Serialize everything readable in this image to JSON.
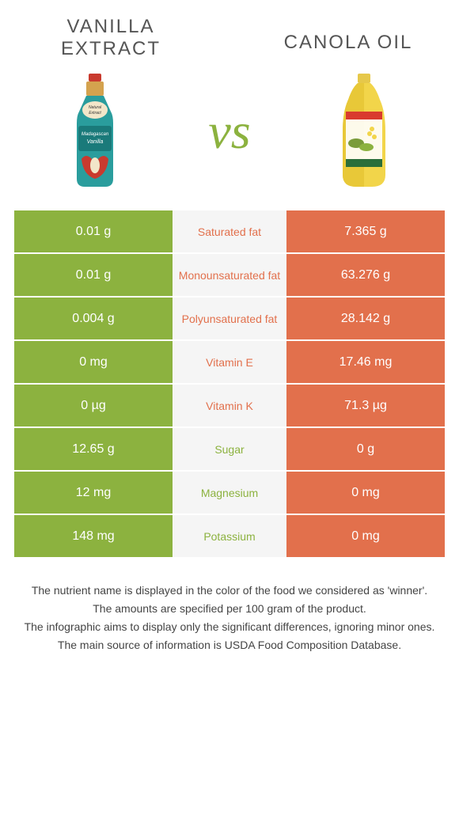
{
  "colors": {
    "green": "#8cb23f",
    "orange": "#e2704c",
    "mid_bg": "#f5f5f5",
    "text_dark": "#555555"
  },
  "header": {
    "left_title": "Vanilla Extract",
    "right_title": "Canola Oil",
    "vs": "vs"
  },
  "vs_color": "#8cb23f",
  "rows": [
    {
      "left": "0.01 g",
      "label": "Saturated fat",
      "right": "7.365 g",
      "winner": "right"
    },
    {
      "left": "0.01 g",
      "label": "Monounsaturated fat",
      "right": "63.276 g",
      "winner": "right"
    },
    {
      "left": "0.004 g",
      "label": "Polyunsaturated fat",
      "right": "28.142 g",
      "winner": "right"
    },
    {
      "left": "0 mg",
      "label": "Vitamin E",
      "right": "17.46 mg",
      "winner": "right"
    },
    {
      "left": "0 µg",
      "label": "Vitamin K",
      "right": "71.3 µg",
      "winner": "right"
    },
    {
      "left": "12.65 g",
      "label": "Sugar",
      "right": "0 g",
      "winner": "left"
    },
    {
      "left": "12 mg",
      "label": "Magnesium",
      "right": "0 mg",
      "winner": "left"
    },
    {
      "left": "148 mg",
      "label": "Potassium",
      "right": "0 mg",
      "winner": "left"
    }
  ],
  "footer": {
    "l1": "The nutrient name is displayed in the color of the food we considered as 'winner'.",
    "l2": "The amounts are specified per 100 gram of the product.",
    "l3": "The infographic aims to display only the significant differences, ignoring minor ones.",
    "l4": "The main source of information is USDA Food Composition Database."
  }
}
